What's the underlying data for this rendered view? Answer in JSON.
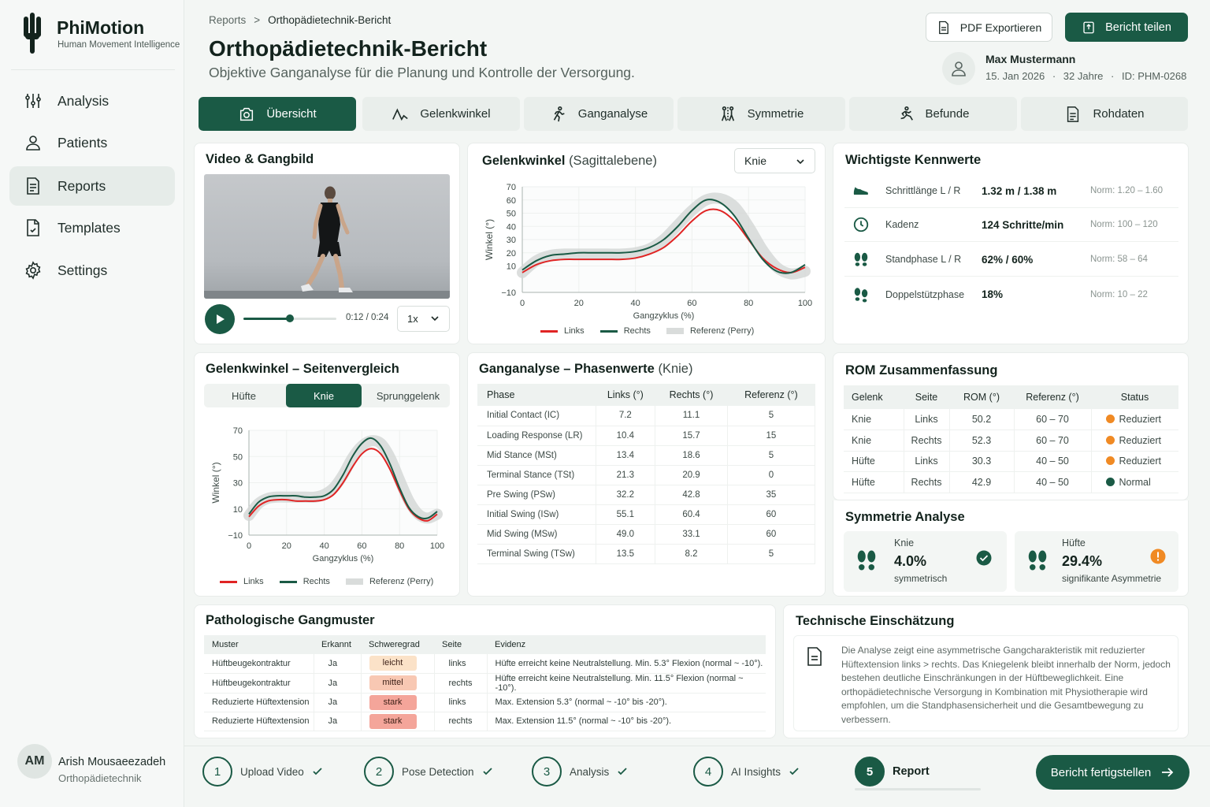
{
  "app": {
    "name": "PhiMotion",
    "tagline": "Human Movement Intelligence"
  },
  "nav": [
    {
      "label": "Analysis",
      "icon": "analysis-icon"
    },
    {
      "label": "Patients",
      "icon": "user-icon"
    },
    {
      "label": "Reports",
      "icon": "document-icon",
      "active": true
    },
    {
      "label": "Templates",
      "icon": "template-icon"
    },
    {
      "label": "Settings",
      "icon": "gear-icon"
    }
  ],
  "user": {
    "initials": "AM",
    "name": "Arish Mousaeezadeh",
    "role": "Orthopädietechnik"
  },
  "breadcrumb": {
    "root": "Reports",
    "current": "Orthopädietechnik-Bericht"
  },
  "page": {
    "title": "Orthopädietechnik-Bericht",
    "subtitle": "Objektive Ganganalyse für die Planung und Kontrolle der Versorgung."
  },
  "actions": {
    "pdf": "PDF Exportieren",
    "share": "Bericht teilen"
  },
  "patient": {
    "name": "Max Mustermann",
    "date": "15. Jan 2026",
    "age": "32 Jahre",
    "id": "ID: PHM-0268",
    "sep": "·"
  },
  "tabs": [
    {
      "label": "Übersicht",
      "active": true
    },
    {
      "label": "Gelenkwinkel"
    },
    {
      "label": "Ganganalyse"
    },
    {
      "label": "Symmetrie"
    },
    {
      "label": "Befunde"
    },
    {
      "label": "Rohdaten"
    }
  ],
  "video": {
    "title": "Video & Gangbild",
    "time": "0:12 / 0:24",
    "speed": "1x",
    "progress": 0.5
  },
  "joint_chart": {
    "title": "Gelenkwinkel",
    "title_suffix": "(Sagittalebene)",
    "selector": "Knie",
    "xlabel": "Gangzyklus (%)",
    "ylabel": "Winkel (°)",
    "legend": [
      "Links",
      "Rechts",
      "Referenz (Perry)"
    ],
    "colors": {
      "left": "#e02424",
      "right": "#1a5a45",
      "ref": "#d3d6d5"
    }
  },
  "kennwerte": {
    "title": "Wichtigste Kennwerte",
    "rows": [
      {
        "icon": "shoe-icon",
        "label": "Schrittlänge L / R",
        "value": "1.32 m / 1.38 m",
        "norm": "Norm: 1.20 – 1.60"
      },
      {
        "icon": "clock-icon",
        "label": "Kadenz",
        "value": "124 Schritte/min",
        "norm": "Norm: 100 – 120"
      },
      {
        "icon": "footprints-icon",
        "label": "Standphase L / R",
        "value": "62% / 60%",
        "norm": "Norm: 58 – 64"
      },
      {
        "icon": "footprints-icon",
        "label": "Doppelstützphase",
        "value": "18%",
        "norm": "Norm: 10 – 22"
      }
    ]
  },
  "side_compare": {
    "title": "Gelenkwinkel – Seitenvergleich",
    "segments": [
      "Hüfte",
      "Knie",
      "Sprunggelenk"
    ],
    "active": "Knie",
    "xlabel": "Gangzyklus (%)",
    "ylabel": "Winkel (°)",
    "legend": [
      "Links",
      "Rechts",
      "Referenz (Perry)"
    ]
  },
  "phases": {
    "title": "Ganganalyse – Phasenwerte",
    "title_suffix": "(Knie)",
    "headers": [
      "Phase",
      "Links (°)",
      "Rechts (°)",
      "Referenz (°)"
    ],
    "rows": [
      [
        "Initial Contact (IC)",
        "7.2",
        "11.1",
        "5"
      ],
      [
        "Loading Response (LR)",
        "10.4",
        "15.7",
        "15"
      ],
      [
        "Mid Stance (MSt)",
        "13.4",
        "18.6",
        "5"
      ],
      [
        "Terminal Stance (TSt)",
        "21.3",
        "20.9",
        "0"
      ],
      [
        "Pre Swing (PSw)",
        "32.2",
        "42.8",
        "35"
      ],
      [
        "Initial Swing (ISw)",
        "55.1",
        "60.4",
        "60"
      ],
      [
        "Mid Swing (MSw)",
        "49.0",
        "33.1",
        "60"
      ],
      [
        "Terminal Swing (TSw)",
        "13.5",
        "8.2",
        "5"
      ]
    ]
  },
  "rom": {
    "title": "ROM Zusammenfassung",
    "headers": [
      "Gelenk",
      "Seite",
      "ROM (°)",
      "Referenz (°)",
      "Status"
    ],
    "rows": [
      {
        "cells": [
          "Knie",
          "Links",
          "50.2",
          "60 – 70"
        ],
        "status": "Reduziert",
        "color": "#f08a24"
      },
      {
        "cells": [
          "Knie",
          "Rechts",
          "52.3",
          "60 – 70"
        ],
        "status": "Reduziert",
        "color": "#f08a24"
      },
      {
        "cells": [
          "Hüfte",
          "Links",
          "30.3",
          "40 – 50"
        ],
        "status": "Reduziert",
        "color": "#f08a24"
      },
      {
        "cells": [
          "Hüfte",
          "Rechts",
          "42.9",
          "40 – 50"
        ],
        "status": "Normal",
        "color": "#1a5a45"
      }
    ]
  },
  "symmetry": {
    "title": "Symmetrie Analyse",
    "items": [
      {
        "label": "Knie",
        "value": "4.0%",
        "desc": "symmetrisch",
        "status": "ok"
      },
      {
        "label": "Hüfte",
        "value": "29.4%",
        "desc": "signifikante Asymmetrie",
        "status": "warn"
      }
    ]
  },
  "patterns": {
    "title": "Pathologische Gangmuster",
    "headers": [
      "Muster",
      "Erkannt",
      "Schweregrad",
      "Seite",
      "Evidenz"
    ],
    "rows": [
      {
        "muster": "Hüftbeugekontraktur",
        "erkannt": "Ja",
        "grad": "leicht",
        "color": "#fbe2c8",
        "seite": "links",
        "evidenz": "Hüfte erreicht keine Neutralstellung. Min. 5.3° Flexion (normal ~ -10°)."
      },
      {
        "muster": "Hüftbeugekontraktur",
        "erkannt": "Ja",
        "grad": "mittel",
        "color": "#f8c8b3",
        "seite": "rechts",
        "evidenz": "Hüfte erreicht keine Neutralstellung. Min. 11.5° Flexion (normal ~ -10°)."
      },
      {
        "muster": "Reduzierte Hüftextension",
        "erkannt": "Ja",
        "grad": "stark",
        "color": "#f4a59a",
        "seite": "links",
        "evidenz": "Max. Extension 5.3° (normal ~ -10° bis -20°)."
      },
      {
        "muster": "Reduzierte Hüftextension",
        "erkannt": "Ja",
        "grad": "stark",
        "color": "#f4a59a",
        "seite": "rechts",
        "evidenz": "Max. Extension 11.5° (normal ~ -10° bis -20°)."
      }
    ]
  },
  "technical": {
    "title": "Technische Einschätzung",
    "text": "Die Analyse zeigt eine asymmetrische Gangcharakteristik mit reduzierter Hüftextension links > rechts. Das Kniegelenk bleibt innerhalb der Norm, jedoch bestehen deutliche Einschränkungen in der Hüftbeweglichkeit. Eine orthopädietechnische Versorgung in Kombination mit Physiotherapie wird empfohlen, um die Standphasensicherheit und die Gesamtbewegung zu verbessern."
  },
  "steps": [
    {
      "n": "1",
      "label": "Upload Video",
      "done": true
    },
    {
      "n": "2",
      "label": "Pose Detection",
      "done": true
    },
    {
      "n": "3",
      "label": "Analysis",
      "done": true
    },
    {
      "n": "4",
      "label": "AI Insights",
      "done": true
    },
    {
      "n": "5",
      "label": "Report",
      "current": true
    }
  ],
  "finish": "Bericht fertigstellen",
  "chart_data": [
    {
      "type": "line",
      "title": "Gelenkwinkel (Sagittalebene)",
      "xlabel": "Gangzyklus (%)",
      "ylabel": "Winkel (°)",
      "xlim": [
        0,
        100
      ],
      "ylim": [
        -10,
        70
      ],
      "xticks": [
        0,
        20,
        40,
        60,
        80,
        100
      ],
      "yticks": [
        -10,
        10,
        20,
        30,
        40,
        50,
        60,
        70
      ],
      "x": [
        0,
        5,
        10,
        15,
        20,
        25,
        30,
        35,
        40,
        45,
        50,
        55,
        60,
        65,
        70,
        75,
        80,
        85,
        90,
        95,
        100
      ],
      "series": [
        {
          "name": "Links",
          "values": [
            5,
            11,
            14,
            15,
            15,
            15,
            15,
            15,
            16,
            19,
            24,
            33,
            44,
            52,
            52,
            44,
            30,
            16,
            8,
            5,
            9
          ]
        },
        {
          "name": "Rechts",
          "values": [
            7,
            14,
            18,
            19,
            20,
            20,
            20,
            20,
            21,
            24,
            30,
            40,
            52,
            60,
            58,
            48,
            31,
            15,
            6,
            5,
            11
          ]
        },
        {
          "name": "Referenz (Perry)",
          "values": [
            5,
            14,
            18,
            19,
            19,
            19,
            19,
            19,
            20,
            23,
            30,
            41,
            52,
            60,
            61,
            55,
            40,
            22,
            9,
            4,
            6
          ]
        }
      ],
      "legend_position": "bottom",
      "grid": true
    },
    {
      "type": "line",
      "title": "Gelenkwinkel – Seitenvergleich (Knie)",
      "xlabel": "Gangzyklus (%)",
      "ylabel": "Winkel (°)",
      "xlim": [
        0,
        100
      ],
      "ylim": [
        -10,
        70
      ],
      "xticks": [
        0,
        20,
        40,
        60,
        80,
        100
      ],
      "yticks": [
        -10,
        10,
        30,
        50,
        70
      ],
      "x": [
        0,
        5,
        10,
        15,
        20,
        25,
        30,
        35,
        40,
        45,
        50,
        55,
        60,
        65,
        70,
        75,
        80,
        85,
        90,
        95,
        100
      ],
      "series": [
        {
          "name": "Links",
          "values": [
            4,
            12,
            16,
            17,
            17,
            16,
            16,
            16,
            17,
            21,
            30,
            42,
            52,
            56,
            52,
            40,
            24,
            10,
            3,
            1,
            6
          ]
        },
        {
          "name": "Rechts",
          "values": [
            6,
            15,
            19,
            20,
            20,
            20,
            19,
            19,
            20,
            25,
            36,
            50,
            60,
            64,
            58,
            44,
            26,
            11,
            4,
            3,
            8
          ]
        },
        {
          "name": "Referenz (Perry)",
          "values": [
            5,
            14,
            18,
            19,
            19,
            19,
            19,
            19,
            21,
            26,
            36,
            49,
            58,
            62,
            60,
            49,
            32,
            16,
            6,
            3,
            6
          ]
        }
      ],
      "legend_position": "bottom",
      "grid": true
    }
  ]
}
